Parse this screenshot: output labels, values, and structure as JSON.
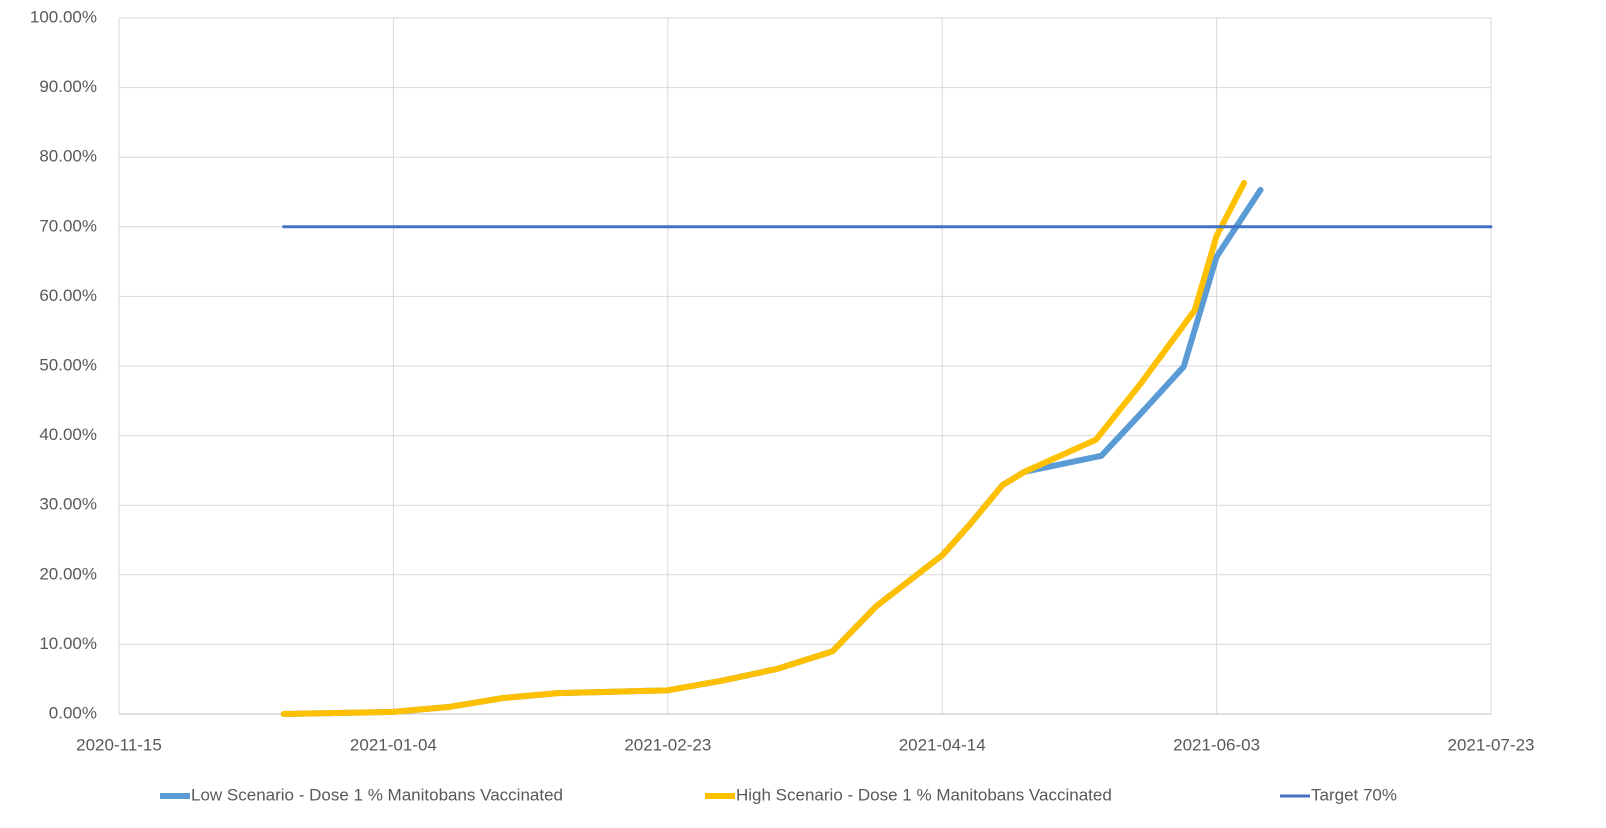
{
  "chart_data": {
    "type": "line",
    "xlim": [
      "2020-11-15",
      "2021-07-23"
    ],
    "xticks": [
      "2020-11-15",
      "2021-01-04",
      "2021-02-23",
      "2021-04-14",
      "2021-06-03",
      "2021-07-23"
    ],
    "ylim": [
      0,
      100
    ],
    "yticks": [
      {
        "value": 0,
        "label": "0.00%"
      },
      {
        "value": 10,
        "label": "10.00%"
      },
      {
        "value": 20,
        "label": "20.00%"
      },
      {
        "value": 30,
        "label": "30.00%"
      },
      {
        "value": 40,
        "label": "40.00%"
      },
      {
        "value": 50,
        "label": "50.00%"
      },
      {
        "value": 60,
        "label": "60.00%"
      },
      {
        "value": 70,
        "label": "70.00%"
      },
      {
        "value": 80,
        "label": "80.00%"
      },
      {
        "value": 90,
        "label": "90.00%"
      },
      {
        "value": 100,
        "label": "100.00%"
      }
    ],
    "grid": true,
    "legend": "bottom",
    "series": [
      {
        "name": "Low Scenario - Dose 1 % Manitobans Vaccinated",
        "color": "#5b9bd5",
        "x": [
          "2020-12-15",
          "2021-01-04",
          "2021-01-14",
          "2021-01-24",
          "2021-02-03",
          "2021-02-13",
          "2021-02-23",
          "2021-03-05",
          "2021-03-15",
          "2021-03-25",
          "2021-04-02",
          "2021-04-14",
          "2021-04-19",
          "2021-04-25",
          "2021-04-29",
          "2021-05-13",
          "2021-05-20",
          "2021-05-28",
          "2021-06-03",
          "2021-06-11"
        ],
        "values": [
          0,
          0.3,
          1.0,
          2.3,
          3.0,
          3.2,
          3.4,
          4.8,
          6.5,
          9.0,
          15.5,
          22.8,
          27.2,
          32.9,
          34.8,
          37.1,
          43.0,
          49.9,
          65.7,
          75.3
        ]
      },
      {
        "name": "High Scenario - Dose 1 % Manitobans Vaccinated",
        "color": "#ffc000",
        "x": [
          "2020-12-15",
          "2021-01-04",
          "2021-01-14",
          "2021-01-24",
          "2021-02-03",
          "2021-02-13",
          "2021-02-23",
          "2021-03-05",
          "2021-03-15",
          "2021-03-25",
          "2021-04-02",
          "2021-04-14",
          "2021-04-19",
          "2021-04-25",
          "2021-04-29",
          "2021-05-12",
          "2021-05-20",
          "2021-05-30",
          "2021-06-03",
          "2021-06-08"
        ],
        "values": [
          0,
          0.3,
          1.0,
          2.3,
          3.0,
          3.2,
          3.4,
          4.8,
          6.5,
          9.0,
          15.5,
          22.8,
          27.2,
          32.9,
          34.8,
          39.4,
          47.3,
          58.0,
          68.7,
          76.3
        ]
      },
      {
        "name": "Target 70%",
        "color": "#4472c4",
        "x": [
          "2020-12-15",
          "2021-07-23"
        ],
        "values": [
          70,
          70
        ]
      }
    ]
  }
}
